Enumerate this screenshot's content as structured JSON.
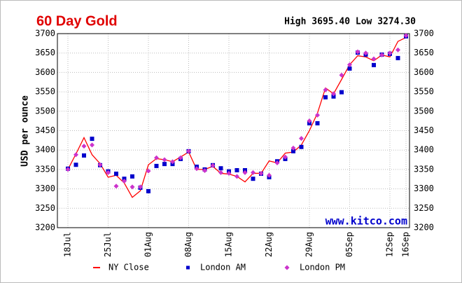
{
  "chart_data": {
    "type": "line",
    "title": "60 Day Gold",
    "subtitle": "High 3695.40 Low 3274.30",
    "y_label": "USD per ounce",
    "watermark": "www.kitco.com",
    "categories": [
      "18Jul",
      null,
      null,
      null,
      null,
      "25Jul",
      null,
      null,
      null,
      null,
      "01Aug",
      null,
      null,
      null,
      null,
      "08Aug",
      null,
      null,
      null,
      null,
      "15Aug",
      null,
      null,
      null,
      null,
      "22Aug",
      null,
      null,
      null,
      null,
      "29Aug",
      null,
      null,
      null,
      null,
      "05Sep",
      null,
      null,
      null,
      null,
      "12Sep",
      null,
      "16Sep"
    ],
    "ylim": [
      3200,
      3700
    ],
    "yticks": [
      3200,
      3250,
      3300,
      3350,
      3400,
      3450,
      3500,
      3550,
      3600,
      3650,
      3700
    ],
    "grid": true,
    "series": [
      {
        "name": "NY Close",
        "color": "#ff0000",
        "marker": "line",
        "values": [
          3350,
          3390,
          3432,
          3388,
          3365,
          3330,
          3335,
          3315,
          3278,
          3295,
          3362,
          3378,
          3375,
          3370,
          3382,
          3395,
          3350,
          3350,
          3358,
          3340,
          3338,
          3332,
          3318,
          3340,
          3340,
          3372,
          3367,
          3392,
          3395,
          3413,
          3450,
          3495,
          3560,
          3545,
          3582,
          3620,
          3643,
          3640,
          3630,
          3645,
          3640,
          3680,
          3690
        ]
      },
      {
        "name": "London AM",
        "color": "#0000cc",
        "marker": "square",
        "values": [
          3352,
          3362,
          3386,
          3429,
          3361,
          3345,
          3339,
          3326,
          3332,
          3303,
          3294,
          3359,
          3364,
          3364,
          3377,
          3397,
          3357,
          3350,
          3361,
          3353,
          3345,
          3348,
          3348,
          3326,
          3339,
          3330,
          3371,
          3377,
          3397,
          3408,
          3469,
          3469,
          3536,
          3538,
          3549,
          3610,
          3651,
          3646,
          3619,
          3646,
          3648,
          3637,
          3693
        ]
      },
      {
        "name": "London PM",
        "color": "#cc33cc",
        "marker": "diamond",
        "values": [
          3350,
          3388,
          3410,
          3413,
          3362,
          3342,
          3307,
          3320,
          3305,
          3305,
          3346,
          3380,
          3375,
          3370,
          3380,
          3397,
          3352,
          3347,
          3360,
          3342,
          3340,
          3332,
          3342,
          3342,
          3340,
          3335,
          3367,
          3382,
          3405,
          3430,
          3475,
          3490,
          3555,
          3545,
          3593,
          3620,
          3653,
          3650,
          3635,
          3645,
          3650,
          3658,
          3695
        ]
      }
    ]
  }
}
